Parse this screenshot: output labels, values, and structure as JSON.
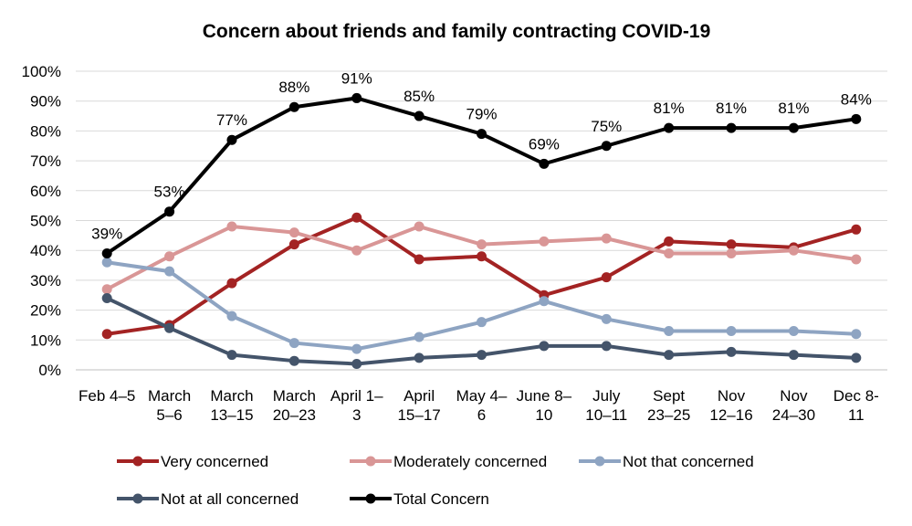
{
  "chart_data": {
    "type": "line",
    "title": "Concern about friends and family contracting COVID-19",
    "xlabel": "",
    "ylabel": "",
    "ylim": [
      0,
      100
    ],
    "y_ticks": [
      "0%",
      "10%",
      "20%",
      "30%",
      "40%",
      "50%",
      "60%",
      "70%",
      "80%",
      "90%",
      "100%"
    ],
    "grid": true,
    "legend_position": "bottom",
    "categories": [
      [
        "Feb 4–5"
      ],
      [
        "March",
        "5–6"
      ],
      [
        "March",
        "13–15"
      ],
      [
        "March",
        "20–23"
      ],
      [
        "April 1–",
        "3"
      ],
      [
        "April",
        "15–17"
      ],
      [
        "May 4–",
        "6"
      ],
      [
        "June 8–",
        "10"
      ],
      [
        "July",
        "10–11"
      ],
      [
        "Sept",
        "23–25"
      ],
      [
        "Nov",
        "12–16"
      ],
      [
        "Nov",
        "24–30"
      ],
      [
        "Dec 8-",
        "11"
      ]
    ],
    "series": [
      {
        "name": "Very concerned",
        "color": "#a32323",
        "values": [
          12,
          15,
          29,
          42,
          51,
          37,
          38,
          25,
          31,
          43,
          42,
          41,
          47
        ]
      },
      {
        "name": "Moderately concerned",
        "color": "#d99696",
        "values": [
          27,
          38,
          48,
          46,
          40,
          48,
          42,
          43,
          44,
          39,
          39,
          40,
          37
        ]
      },
      {
        "name": "Not that concerned",
        "color": "#8ea4c2",
        "values": [
          36,
          33,
          18,
          9,
          7,
          11,
          16,
          23,
          17,
          13,
          13,
          13,
          12
        ]
      },
      {
        "name": "Not at all concerned",
        "color": "#44546a",
        "values": [
          24,
          14,
          5,
          3,
          2,
          4,
          5,
          8,
          8,
          5,
          6,
          5,
          4
        ]
      },
      {
        "name": "Total Concern",
        "color": "#000000",
        "values": [
          39,
          53,
          77,
          88,
          91,
          85,
          79,
          69,
          75,
          81,
          81,
          81,
          84
        ],
        "data_labels": [
          "39%",
          "53%",
          "77%",
          "88%",
          "91%",
          "85%",
          "79%",
          "69%",
          "75%",
          "81%",
          "81%",
          "81%",
          "84%"
        ]
      }
    ]
  }
}
